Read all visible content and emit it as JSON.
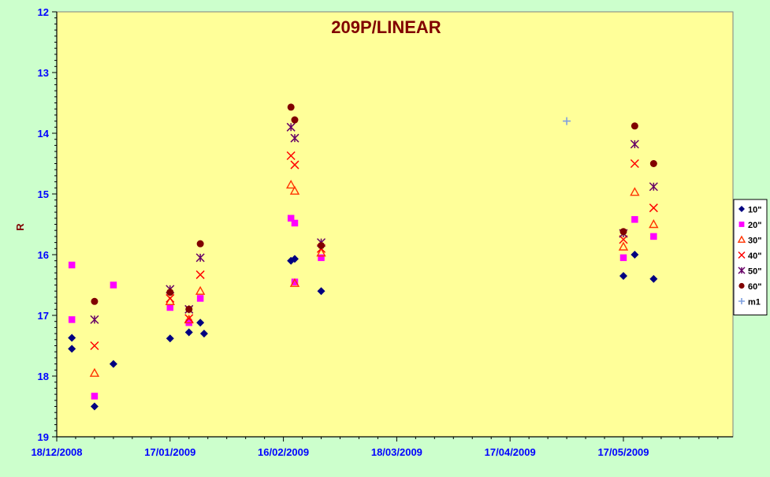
{
  "colors": {
    "background": "#ccffcc",
    "plot_area": "#ffff99",
    "axis_text": "#0000ff",
    "title": "#800000",
    "ylabel": "#800000"
  },
  "chart_data": {
    "type": "scatter",
    "title": "209P/LINEAR",
    "xlabel": "",
    "ylabel": "R",
    "x_ticks": [
      "18/12/2008",
      "17/01/2009",
      "16/02/2009",
      "18/03/2009",
      "17/04/2009",
      "17/05/2009"
    ],
    "x_range": [
      "2008-12-18",
      "2009-06-15"
    ],
    "ylim": [
      12,
      19
    ],
    "y_inverted": true,
    "y_ticks": [
      12,
      13,
      14,
      15,
      16,
      17,
      18,
      19
    ],
    "grid": false,
    "legend_position": "right",
    "series": [
      {
        "name": "10\"",
        "marker": "diamond",
        "color": "#000080",
        "points": [
          {
            "x": "2008-12-22",
            "y": 17.55
          },
          {
            "x": "2008-12-22",
            "y": 17.37
          },
          {
            "x": "2008-12-28",
            "y": 18.5
          },
          {
            "x": "2009-01-02",
            "y": 17.8
          },
          {
            "x": "2009-01-17",
            "y": 17.38
          },
          {
            "x": "2009-01-22",
            "y": 17.28
          },
          {
            "x": "2009-01-25",
            "y": 17.12
          },
          {
            "x": "2009-01-26",
            "y": 17.3
          },
          {
            "x": "2009-02-18",
            "y": 16.1
          },
          {
            "x": "2009-02-19",
            "y": 16.07
          },
          {
            "x": "2009-02-26",
            "y": 16.6
          },
          {
            "x": "2009-05-17",
            "y": 16.35
          },
          {
            "x": "2009-05-20",
            "y": 16.0
          },
          {
            "x": "2009-05-25",
            "y": 16.4
          }
        ]
      },
      {
        "name": "20\"",
        "marker": "square",
        "color": "#ff00ff",
        "points": [
          {
            "x": "2008-12-22",
            "y": 16.17
          },
          {
            "x": "2008-12-22",
            "y": 17.07
          },
          {
            "x": "2008-12-28",
            "y": 18.33
          },
          {
            "x": "2009-01-02",
            "y": 16.5
          },
          {
            "x": "2009-01-17",
            "y": 16.87
          },
          {
            "x": "2009-01-22",
            "y": 17.12
          },
          {
            "x": "2009-01-25",
            "y": 16.72
          },
          {
            "x": "2009-02-18",
            "y": 15.4
          },
          {
            "x": "2009-02-19",
            "y": 15.48
          },
          {
            "x": "2009-02-19",
            "y": 16.45
          },
          {
            "x": "2009-02-26",
            "y": 16.05
          },
          {
            "x": "2009-05-17",
            "y": 16.05
          },
          {
            "x": "2009-05-20",
            "y": 15.42
          },
          {
            "x": "2009-05-25",
            "y": 15.7
          }
        ]
      },
      {
        "name": "30\"",
        "marker": "triangle",
        "color": "#ff3300",
        "points": [
          {
            "x": "2008-12-28",
            "y": 17.95
          },
          {
            "x": "2009-01-17",
            "y": 16.77
          },
          {
            "x": "2009-01-22",
            "y": 17.07
          },
          {
            "x": "2009-01-25",
            "y": 16.6
          },
          {
            "x": "2009-02-18",
            "y": 14.85
          },
          {
            "x": "2009-02-19",
            "y": 14.95
          },
          {
            "x": "2009-02-19",
            "y": 16.47
          },
          {
            "x": "2009-02-26",
            "y": 15.97
          },
          {
            "x": "2009-05-17",
            "y": 15.87
          },
          {
            "x": "2009-05-20",
            "y": 14.97
          },
          {
            "x": "2009-05-25",
            "y": 15.5
          }
        ]
      },
      {
        "name": "40\"",
        "marker": "x",
        "color": "#ff0000",
        "points": [
          {
            "x": "2008-12-28",
            "y": 17.5
          },
          {
            "x": "2009-01-17",
            "y": 16.72
          },
          {
            "x": "2009-01-22",
            "y": 17.05
          },
          {
            "x": "2009-01-25",
            "y": 16.33
          },
          {
            "x": "2009-02-18",
            "y": 14.37
          },
          {
            "x": "2009-02-19",
            "y": 14.52
          },
          {
            "x": "2009-02-26",
            "y": 15.9
          },
          {
            "x": "2009-05-17",
            "y": 15.75
          },
          {
            "x": "2009-05-20",
            "y": 14.5
          },
          {
            "x": "2009-05-25",
            "y": 15.23
          }
        ]
      },
      {
        "name": "50\"",
        "marker": "star",
        "color": "#660066",
        "points": [
          {
            "x": "2008-12-28",
            "y": 17.07
          },
          {
            "x": "2009-01-17",
            "y": 16.57
          },
          {
            "x": "2009-01-22",
            "y": 16.9
          },
          {
            "x": "2009-01-25",
            "y": 16.05
          },
          {
            "x": "2009-02-18",
            "y": 13.9
          },
          {
            "x": "2009-02-19",
            "y": 14.08
          },
          {
            "x": "2009-02-26",
            "y": 15.8
          },
          {
            "x": "2009-05-17",
            "y": 15.65
          },
          {
            "x": "2009-05-20",
            "y": 14.18
          },
          {
            "x": "2009-05-25",
            "y": 14.88
          }
        ]
      },
      {
        "name": "60\"",
        "marker": "circle",
        "color": "#800000",
        "points": [
          {
            "x": "2008-12-28",
            "y": 16.77
          },
          {
            "x": "2009-01-17",
            "y": 16.62
          },
          {
            "x": "2009-01-22",
            "y": 16.9
          },
          {
            "x": "2009-01-25",
            "y": 15.82
          },
          {
            "x": "2009-02-18",
            "y": 13.57
          },
          {
            "x": "2009-02-19",
            "y": 13.78
          },
          {
            "x": "2009-02-26",
            "y": 15.85
          },
          {
            "x": "2009-05-17",
            "y": 15.62
          },
          {
            "x": "2009-05-20",
            "y": 13.88
          },
          {
            "x": "2009-05-25",
            "y": 14.5
          }
        ]
      },
      {
        "name": "m1",
        "marker": "plus",
        "color": "#7f9fdf",
        "points": [
          {
            "x": "2009-05-02",
            "y": 13.8
          }
        ]
      }
    ]
  }
}
